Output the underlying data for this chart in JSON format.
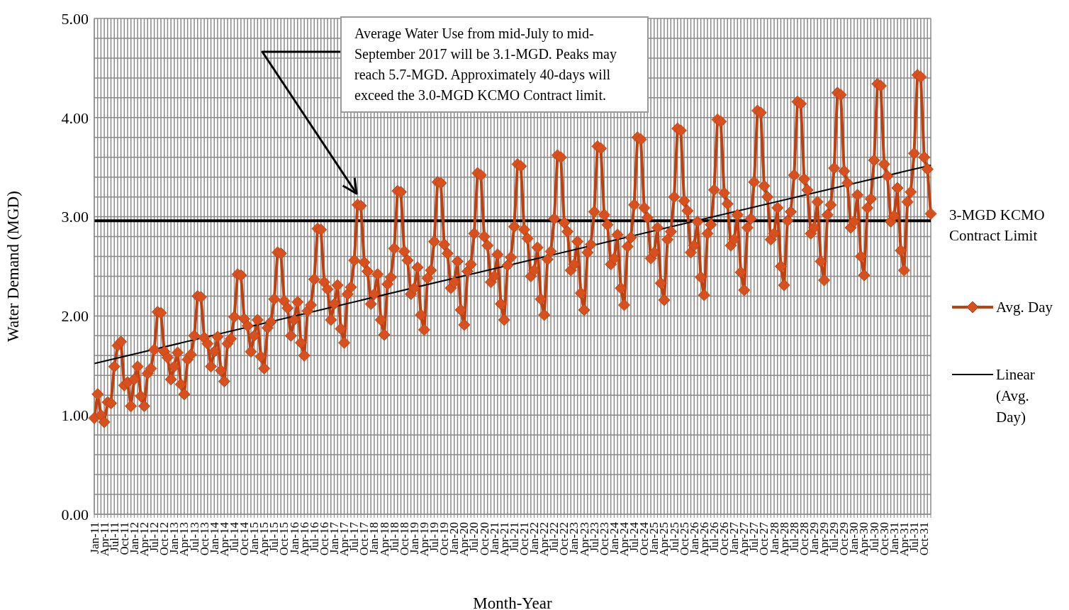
{
  "chart_data": {
    "type": "line",
    "xlabel": "Month-Year",
    "ylabel": "Water Demand (MGD)",
    "categories": [
      "Jan-11",
      null,
      null,
      "Apr-11",
      null,
      null,
      "Jul-11",
      null,
      null,
      "Oct-11",
      null,
      null,
      "Jan-12",
      null,
      null,
      "Apr-12",
      null,
      null,
      "Jul-12",
      null,
      null,
      "Oct-12",
      null,
      null,
      "Jan-13",
      null,
      null,
      "Apr-13",
      null,
      null,
      "Jul-13",
      null,
      null,
      "Oct-13",
      null,
      null,
      "Jan-14",
      null,
      null,
      "Apr-14",
      null,
      null,
      "Jul-14",
      null,
      null,
      "Oct-14",
      null,
      null,
      "Jan-15",
      null,
      null,
      "Apr-15",
      null,
      null,
      "Jul-15",
      null,
      null,
      "Oct-15",
      null,
      null,
      "Jan-16",
      null,
      null,
      "Apr-16",
      null,
      null,
      "Jul-16",
      null,
      null,
      "Oct-16",
      null,
      null,
      "Jan-17",
      null,
      null,
      "Apr-17",
      null,
      null,
      "Jul-17",
      null,
      null,
      "Oct-17",
      null,
      null,
      "Jan-18",
      null,
      null,
      "Apr-18",
      null,
      null,
      "Jul-18",
      null,
      null,
      "Oct-18",
      null,
      null,
      "Jan-19",
      null,
      null,
      "Apr-19",
      null,
      null,
      "Jul-19",
      null,
      null,
      "Oct-19",
      null,
      null,
      "Jan-20",
      null,
      null,
      "Apr-20",
      null,
      null,
      "Jul-20",
      null,
      null,
      "Oct-20",
      null,
      null,
      "Jan-21",
      null,
      null,
      "Apr-21",
      null,
      null,
      "Jul-21",
      null,
      null,
      "Oct-21",
      null,
      null,
      "Jan-22",
      null,
      null,
      "Apr-22",
      null,
      null,
      "Jul-22",
      null,
      null,
      "Oct-22",
      null,
      null,
      "Jan-23",
      null,
      null,
      "Apr-23",
      null,
      null,
      "Jul-23",
      null,
      null,
      "Oct-23",
      null,
      null,
      "Jan-24",
      null,
      null,
      "Apr-24",
      null,
      null,
      "Jul-24",
      null,
      null,
      "Oct-24",
      null,
      null,
      "Jan-25",
      null,
      null,
      "Apr-25",
      null,
      null,
      "Jul-25",
      null,
      null,
      "Oct-25",
      null,
      null,
      "Jan-26",
      null,
      null,
      "Apr-26",
      null,
      null,
      "Jul-26",
      null,
      null,
      "Oct-26",
      null,
      null,
      "Jan-27",
      null,
      null,
      "Apr-27",
      null,
      null,
      "Jul-27",
      null,
      null,
      "Oct-27",
      null,
      null,
      "Jan-28",
      null,
      null,
      "Apr-28",
      null,
      null,
      "Jul-28",
      null,
      null,
      "Oct-28",
      null,
      null,
      "Jan-29",
      null,
      null,
      "Apr-29",
      null,
      null,
      "Jul-29",
      null,
      null,
      "Oct-29",
      null,
      null,
      "Jan-30",
      null,
      null,
      "Apr-30",
      null,
      null,
      "Jul-30",
      null,
      null,
      "Oct-30",
      null,
      null,
      "Jan-31",
      null,
      null,
      "Apr-31",
      null,
      null,
      "Jul-31",
      null,
      null,
      "Oct-31",
      null,
      null
    ],
    "series": [
      {
        "name": "Avg. Day",
        "color": "#c0410f",
        "marker": "diamond",
        "values": [
          0.97,
          1.21,
          1.0,
          0.93,
          1.13,
          1.12,
          1.49,
          1.7,
          1.74,
          1.3,
          1.33,
          1.09,
          1.36,
          1.49,
          1.19,
          1.09,
          1.42,
          1.47,
          1.66,
          2.04,
          2.03,
          1.64,
          1.58,
          1.36,
          1.49,
          1.63,
          1.31,
          1.21,
          1.56,
          1.61,
          1.8,
          2.2,
          2.19,
          1.78,
          1.72,
          1.49,
          1.64,
          1.79,
          1.45,
          1.34,
          1.72,
          1.77,
          1.99,
          2.42,
          2.41,
          1.97,
          1.9,
          1.64,
          1.8,
          1.96,
          1.59,
          1.47,
          1.88,
          1.94,
          2.17,
          2.64,
          2.63,
          2.15,
          2.08,
          1.8,
          1.96,
          2.14,
          1.73,
          1.6,
          2.05,
          2.11,
          2.37,
          2.88,
          2.87,
          2.34,
          2.27,
          1.96,
          2.12,
          2.31,
          1.87,
          1.73,
          2.22,
          2.29,
          2.56,
          3.12,
          3.11,
          2.54,
          2.45,
          2.12,
          2.22,
          2.42,
          1.96,
          1.81,
          2.32,
          2.39,
          2.68,
          3.26,
          3.25,
          2.65,
          2.56,
          2.22,
          2.28,
          2.49,
          2.01,
          1.86,
          2.38,
          2.46,
          2.75,
          3.35,
          3.34,
          2.72,
          2.63,
          2.28,
          2.34,
          2.55,
          2.06,
          1.91,
          2.45,
          2.52,
          2.83,
          3.44,
          3.42,
          2.8,
          2.71,
          2.34,
          2.4,
          2.62,
          2.12,
          1.96,
          2.51,
          2.59,
          2.9,
          3.53,
          3.51,
          2.87,
          2.78,
          2.4,
          2.46,
          2.69,
          2.17,
          2.01,
          2.57,
          2.65,
          2.98,
          3.62,
          3.6,
          2.94,
          2.85,
          2.46,
          2.52,
          2.75,
          2.23,
          2.06,
          2.64,
          2.72,
          3.05,
          3.71,
          3.69,
          3.02,
          2.92,
          2.52,
          2.58,
          2.82,
          2.28,
          2.11,
          2.7,
          2.79,
          3.12,
          3.8,
          3.78,
          3.09,
          2.99,
          2.58,
          2.64,
          2.89,
          2.33,
          2.16,
          2.77,
          2.85,
          3.2,
          3.89,
          3.87,
          3.16,
          3.06,
          2.64,
          2.71,
          2.95,
          2.39,
          2.21,
          2.83,
          2.92,
          3.27,
          3.98,
          3.96,
          3.24,
          3.13,
          2.71,
          2.77,
          3.02,
          2.44,
          2.26,
          2.89,
          2.98,
          3.35,
          4.07,
          4.05,
          3.31,
          3.2,
          2.77,
          2.83,
          3.09,
          2.5,
          2.31,
          2.96,
          3.05,
          3.42,
          4.16,
          4.14,
          3.38,
          3.27,
          2.83,
          2.89,
          3.15,
          2.55,
          2.36,
          3.02,
          3.12,
          3.49,
          4.25,
          4.23,
          3.46,
          3.34,
          2.89,
          2.95,
          3.22,
          2.6,
          2.41,
          3.09,
          3.18,
          3.57,
          4.34,
          4.32,
          3.53,
          3.41,
          2.95,
          3.01,
          3.29,
          2.66,
          2.46,
          3.15,
          3.25,
          3.64,
          4.43,
          4.41,
          3.6,
          3.48,
          3.03
        ]
      },
      {
        "name": "Linear (Avg. Day)",
        "color": "#000000",
        "marker": "none",
        "values": [
          1.52,
          null,
          null,
          null,
          null,
          null,
          null,
          null,
          null,
          null,
          null,
          null,
          null,
          null,
          null,
          null,
          null,
          null,
          null,
          null,
          null,
          null,
          null,
          null,
          null,
          null,
          null,
          null,
          null,
          null,
          null,
          null,
          null,
          null,
          null,
          null,
          null,
          null,
          null,
          null,
          null,
          null,
          null,
          null,
          null,
          null,
          null,
          null,
          null,
          null,
          null,
          null,
          null,
          null,
          null,
          null,
          null,
          null,
          null,
          null,
          null,
          null,
          null,
          null,
          null,
          null,
          null,
          null,
          null,
          null,
          null,
          null,
          null,
          null,
          null,
          null,
          null,
          null,
          null,
          null,
          null,
          null,
          null,
          null,
          null,
          null,
          null,
          null,
          null,
          null,
          null,
          null,
          null,
          null,
          null,
          null,
          null,
          null,
          null,
          null,
          null,
          null,
          null,
          null,
          null,
          null,
          null,
          null,
          null,
          null,
          null,
          null,
          null,
          null,
          null,
          null,
          null,
          null,
          null,
          null,
          null,
          null,
          null,
          null,
          null,
          null,
          null,
          null,
          null,
          null,
          null,
          null,
          null,
          null,
          null,
          null,
          null,
          null,
          null,
          null,
          null,
          null,
          null,
          null,
          null,
          null,
          null,
          null,
          null,
          null,
          null,
          null,
          null,
          null,
          null,
          null,
          null,
          null,
          null,
          null,
          null,
          null,
          null,
          null,
          null,
          null,
          null,
          null,
          null,
          null,
          null,
          null,
          null,
          null,
          null,
          null,
          null,
          null,
          null,
          null,
          null,
          null,
          null,
          null,
          null,
          null,
          null,
          null,
          null,
          null,
          null,
          null,
          null,
          null,
          null,
          null,
          null,
          null,
          null,
          null,
          null,
          null,
          null,
          null,
          null,
          null,
          null,
          null,
          null,
          null,
          null,
          null,
          null,
          null,
          null,
          null,
          null,
          null,
          null,
          null,
          null,
          null,
          null,
          null,
          null,
          null,
          null,
          null,
          null,
          null,
          null,
          null,
          null,
          null,
          null,
          null,
          null,
          null,
          null,
          null,
          null,
          null,
          null,
          null,
          null,
          null,
          null,
          null,
          null,
          null,
          null,
          3.52
        ]
      }
    ],
    "ylim": [
      0,
      5
    ],
    "yticks": [
      {
        "value": 0,
        "label": "0.00"
      },
      {
        "value": 0.2,
        "label": null
      },
      {
        "value": 0.4,
        "label": null
      },
      {
        "value": 0.6,
        "label": null
      },
      {
        "value": 0.8,
        "label": null
      },
      {
        "value": 1,
        "label": "1.00"
      },
      {
        "value": 1.2,
        "label": null
      },
      {
        "value": 1.4,
        "label": null
      },
      {
        "value": 1.6,
        "label": null
      },
      {
        "value": 1.8,
        "label": null
      },
      {
        "value": 2,
        "label": "2.00"
      },
      {
        "value": 2.2,
        "label": null
      },
      {
        "value": 2.4,
        "label": null
      },
      {
        "value": 2.6,
        "label": null
      },
      {
        "value": 2.8,
        "label": null
      },
      {
        "value": 3,
        "label": "3.00"
      },
      {
        "value": 3.2,
        "label": null
      },
      {
        "value": 3.4,
        "label": null
      },
      {
        "value": 3.6,
        "label": null
      },
      {
        "value": 3.8,
        "label": null
      },
      {
        "value": 4,
        "label": "4.00"
      },
      {
        "value": 4.2,
        "label": null
      },
      {
        "value": 4.4,
        "label": null
      },
      {
        "value": 4.6,
        "label": null
      },
      {
        "value": 4.8,
        "label": null
      },
      {
        "value": 5,
        "label": "5.00"
      }
    ],
    "grid": true,
    "legend": "right",
    "ref_lines": [
      {
        "axis": "y",
        "value": 2.96,
        "label": "3-MGD KCMO Contract Limit",
        "color": "#000000"
      }
    ],
    "annotations": [
      "Average Water Use from mid-July to mid-September 2017 will be 3.1-MGD.  Peaks may reach 5.7-MGD.  Approximately 40-days will exceed the 3.0-MGD  KCMO Contract limit."
    ]
  }
}
